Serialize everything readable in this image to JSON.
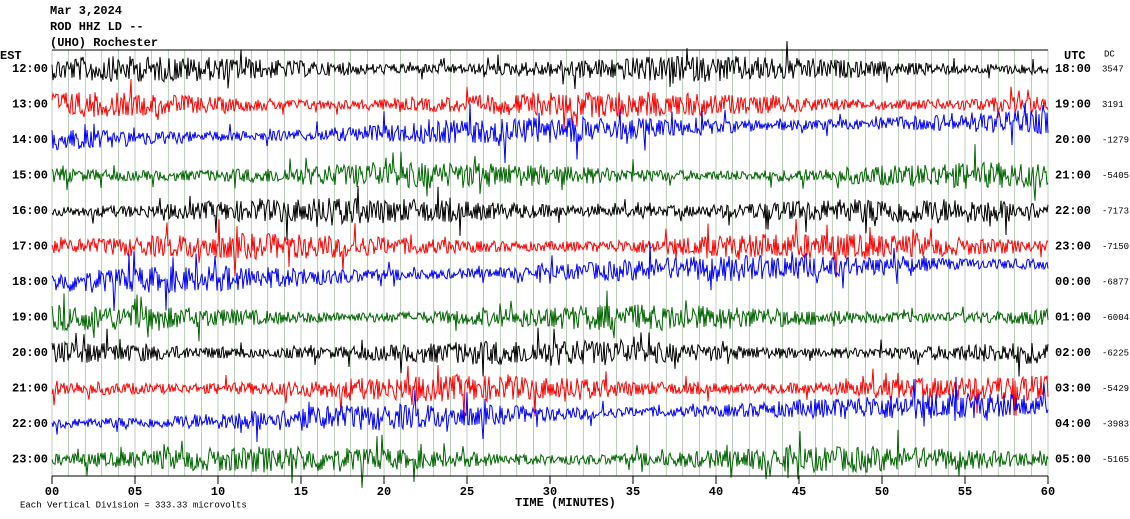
{
  "header": {
    "date": "Mar 3,2024",
    "station": "ROD HHZ LD --",
    "location": "(UHO) Rochester"
  },
  "left_axis": {
    "title": "EST",
    "labels": [
      "12:00",
      "13:00",
      "14:00",
      "15:00",
      "16:00",
      "17:00",
      "18:00",
      "19:00",
      "20:00",
      "21:00",
      "22:00",
      "23:00"
    ]
  },
  "right_axis": {
    "title": "UTC",
    "labels": [
      "18:00",
      "19:00",
      "20:00",
      "21:00",
      "22:00",
      "23:00",
      "00:00",
      "01:00",
      "02:00",
      "03:00",
      "04:00",
      "05:00"
    ]
  },
  "dc": {
    "title": "DC",
    "values": [
      3547,
      3191,
      -1279,
      -5405,
      -7173,
      -7150,
      -6877,
      -6004,
      -6225,
      -5429,
      -3983,
      -5165
    ]
  },
  "x_axis": {
    "title": "TIME (MINUTES)",
    "ticks": [
      "00",
      "05",
      "10",
      "15",
      "20",
      "25",
      "30",
      "35",
      "40",
      "45",
      "50",
      "55",
      "60"
    ]
  },
  "footer": "Each Vertical Division =  333.33 microvolts",
  "trace_colors": [
    "#000000",
    "#ff0000",
    "#0000ff",
    "#006600"
  ]
}
